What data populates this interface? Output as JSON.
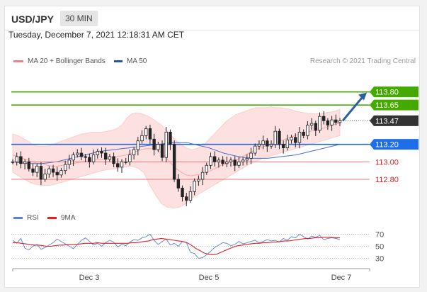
{
  "header": {
    "pair": "USD/JPY",
    "timeframe": "30 MIN"
  },
  "datetime": "Tuesday, December 7, 2021 12:18:31 AM CET",
  "legend": {
    "ma20_label": "MA 20 + Bollinger Bands",
    "ma50_label": "MA 50",
    "credit": "Research © 2021 Trading Central"
  },
  "rsi_legend": {
    "rsi_label": "RSI",
    "ma9_label": "9MA"
  },
  "colors": {
    "bullish": "#44aa00",
    "bearish": "#e00000",
    "pivot": "#2266dd",
    "current": "#333333",
    "bollinger": "#f7a8a8",
    "ma50": "#4a6fd0",
    "candle": "#222222",
    "rsi": "#5a80d8",
    "rsi_ma": "#dd2222"
  },
  "chart_data": [
    {
      "type": "candlestick",
      "y_range": [
        112.5,
        114.0
      ],
      "x_ticks": [
        "Dec 3",
        "Dec 5",
        "Dec 7"
      ],
      "current_price": "113.47",
      "levels": [
        {
          "label": "113.80",
          "value": 113.8,
          "kind": "resistance"
        },
        {
          "label": "113.65",
          "value": 113.65,
          "kind": "resistance"
        },
        {
          "label": "113.20",
          "value": 113.2,
          "kind": "pivot"
        },
        {
          "label": "113.00",
          "value": 113.0,
          "kind": "support"
        },
        {
          "label": "112.80",
          "value": 112.8,
          "kind": "support"
        }
      ],
      "closes": [
        113.0,
        113.06,
        112.98,
        113.0,
        112.92,
        112.88,
        112.95,
        112.8,
        112.86,
        112.92,
        112.88,
        112.85,
        112.9,
        112.97,
        113.02,
        113.08,
        113.1,
        113.06,
        113.05,
        113.0,
        113.08,
        113.12,
        113.1,
        113.03,
        113.06,
        112.98,
        112.94,
        113.0,
        113.0,
        113.08,
        113.14,
        113.24,
        113.3,
        113.38,
        113.26,
        113.14,
        113.2,
        113.05,
        113.34,
        113.2,
        112.8,
        112.7,
        112.6,
        112.56,
        112.66,
        112.78,
        112.8,
        112.88,
        112.96,
        113.06,
        113.0,
        113.02,
        112.98,
        113.0,
        113.02,
        112.96,
        113.0,
        113.02,
        113.04,
        113.1,
        113.18,
        113.2,
        113.24,
        113.18,
        113.2,
        113.35,
        113.2,
        113.16,
        113.25,
        113.28,
        113.22,
        113.34,
        113.3,
        113.42,
        113.44,
        113.36,
        113.52,
        113.47,
        113.42,
        113.48,
        113.45,
        113.47
      ],
      "ma20": [
        113.08,
        113.06,
        113.04,
        113.02,
        113.0,
        112.98,
        112.98,
        112.96,
        112.95,
        112.95,
        112.96,
        112.97,
        112.98,
        112.99,
        113.0,
        113.01,
        113.02,
        113.03,
        113.03,
        113.04,
        113.05,
        113.06,
        113.07,
        113.08,
        113.1,
        113.12,
        113.14,
        113.15,
        113.15,
        113.14,
        113.1,
        113.04,
        112.98,
        112.92,
        112.88,
        112.85,
        112.84,
        112.85,
        112.86,
        112.88,
        112.9,
        112.93,
        112.96,
        112.98,
        113.0,
        113.02,
        113.05,
        113.08,
        113.11,
        113.14,
        113.16,
        113.18,
        113.2,
        113.22,
        113.24,
        113.26,
        113.28,
        113.3,
        113.32,
        113.34,
        113.35,
        113.36,
        113.37,
        113.39,
        113.41,
        113.43,
        113.44
      ],
      "bb_upper": [
        113.32,
        113.3,
        113.27,
        113.24,
        113.2,
        113.18,
        113.18,
        113.18,
        113.2,
        113.22,
        113.24,
        113.26,
        113.28,
        113.3,
        113.32,
        113.33,
        113.34,
        113.34,
        113.34,
        113.35,
        113.36,
        113.38,
        113.42,
        113.5,
        113.55,
        113.56,
        113.55,
        113.53,
        113.5,
        113.46,
        113.42,
        113.36,
        113.3,
        113.24,
        113.2,
        113.16,
        113.14,
        113.15,
        113.18,
        113.22,
        113.28,
        113.34,
        113.4,
        113.46,
        113.5,
        113.54,
        113.56,
        113.58,
        113.6,
        113.62,
        113.62,
        113.62,
        113.63,
        113.62,
        113.62,
        113.61,
        113.6,
        113.58,
        113.57,
        113.56,
        113.55,
        113.55,
        113.55,
        113.56,
        113.57,
        113.58,
        113.6
      ],
      "bb_lower": [
        112.88,
        112.84,
        112.8,
        112.76,
        112.74,
        112.73,
        112.73,
        112.74,
        112.76,
        112.78,
        112.8,
        112.82,
        112.84,
        112.86,
        112.88,
        112.9,
        112.91,
        112.92,
        112.93,
        112.94,
        112.95,
        112.93,
        112.88,
        112.74,
        112.62,
        112.52,
        112.48,
        112.47,
        112.48,
        112.52,
        112.58,
        112.62,
        112.66,
        112.7,
        112.74,
        112.78,
        112.82,
        112.86,
        112.9,
        112.94,
        112.98,
        113.01,
        113.04,
        113.06,
        113.08,
        113.1,
        113.12,
        113.14,
        113.16,
        113.18,
        113.2,
        113.22,
        113.24,
        113.26,
        113.28,
        113.3
      ],
      "ma50": [
        113.0,
        112.99,
        112.98,
        112.98,
        112.98,
        112.99,
        113.0,
        113.02,
        113.04,
        113.06,
        113.08,
        113.1,
        113.12,
        113.13,
        113.14,
        113.15,
        113.16,
        113.17,
        113.18,
        113.19,
        113.2,
        113.21,
        113.22,
        113.22,
        113.22,
        113.2,
        113.18,
        113.16,
        113.13,
        113.1,
        113.08,
        113.06,
        113.05,
        113.04,
        113.04,
        113.04,
        113.05,
        113.06,
        113.07,
        113.08,
        113.1,
        113.12,
        113.14,
        113.16,
        113.18,
        113.2
      ]
    },
    {
      "type": "line",
      "y_ticks": [
        70,
        50,
        30
      ],
      "y_range": [
        20,
        80
      ],
      "x_ticks": [
        "Dec 3",
        "Dec 5",
        "Dec 7"
      ],
      "series": [
        {
          "name": "RSI",
          "values": [
            60,
            55,
            63,
            47,
            44,
            50,
            53,
            45,
            48,
            52,
            56,
            62,
            58,
            54,
            50,
            46,
            53,
            60,
            64,
            58,
            52,
            55,
            50,
            56,
            60,
            57,
            49,
            53,
            51,
            57,
            61,
            60,
            64,
            66,
            70,
            60,
            53,
            58,
            62,
            52,
            55,
            50,
            58,
            56,
            40,
            38,
            30,
            31,
            36,
            42,
            48,
            52,
            56,
            55,
            51,
            53,
            58,
            54,
            56,
            58,
            60,
            56,
            58,
            61,
            59,
            60,
            57,
            63,
            60,
            66,
            64,
            70,
            66,
            62,
            67,
            65,
            68,
            61,
            63,
            64,
            63,
            61
          ]
        },
        {
          "name": "9MA",
          "values": [
            56,
            56,
            55,
            54,
            53,
            52,
            52,
            51,
            50,
            50,
            51,
            52,
            52,
            53,
            53,
            53,
            54,
            55,
            55,
            55,
            56,
            55,
            55,
            55,
            55,
            55,
            55,
            55,
            56,
            56,
            57,
            58,
            59,
            61,
            62,
            63,
            62,
            61,
            60,
            59,
            58,
            56,
            52,
            47,
            43,
            39,
            37,
            36,
            37,
            40,
            43,
            46,
            49,
            51,
            52,
            53,
            54,
            55,
            55,
            56,
            56,
            57,
            57,
            58,
            59,
            59,
            60,
            61,
            62,
            63,
            63,
            64,
            64,
            65,
            65,
            65,
            64,
            64
          ]
        }
      ]
    }
  ]
}
